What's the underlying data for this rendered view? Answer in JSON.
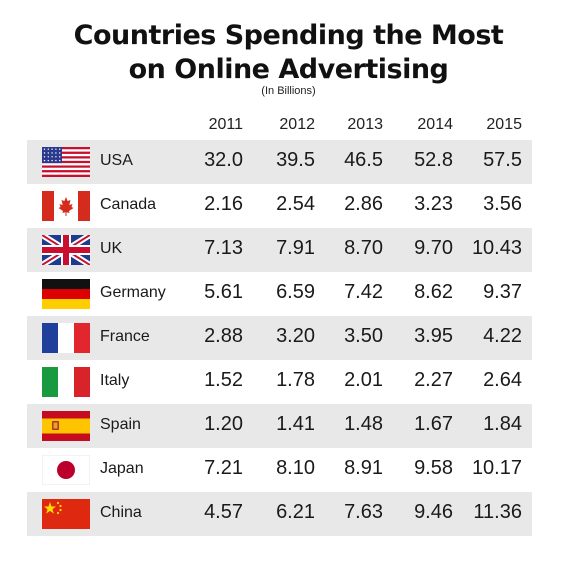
{
  "title_line1": "Countries Spending the Most",
  "title_line2": "on Online Advertising",
  "subtitle": "(In Billions)",
  "chart_data": {
    "type": "table",
    "title": "Countries Spending the Most on Online Advertising",
    "subtitle": "(In Billions)",
    "columns": [
      "2011",
      "2012",
      "2013",
      "2014",
      "2015"
    ],
    "rows": [
      {
        "country": "USA",
        "flag": "usa-flag",
        "values": [
          "32.0",
          "39.5",
          "46.5",
          "52.8",
          "57.5"
        ]
      },
      {
        "country": "Canada",
        "flag": "canada-flag",
        "values": [
          "2.16",
          "2.54",
          "2.86",
          "3.23",
          "3.56"
        ]
      },
      {
        "country": "UK",
        "flag": "uk-flag",
        "values": [
          "7.13",
          "7.91",
          "8.70",
          "9.70",
          "10.43"
        ]
      },
      {
        "country": "Germany",
        "flag": "germany-flag",
        "values": [
          "5.61",
          "6.59",
          "7.42",
          "8.62",
          "9.37"
        ]
      },
      {
        "country": "France",
        "flag": "france-flag",
        "values": [
          "2.88",
          "3.20",
          "3.50",
          "3.95",
          "4.22"
        ]
      },
      {
        "country": "Italy",
        "flag": "italy-flag",
        "values": [
          "1.52",
          "1.78",
          "2.01",
          "2.27",
          "2.64"
        ]
      },
      {
        "country": "Spain",
        "flag": "spain-flag",
        "values": [
          "1.20",
          "1.41",
          "1.48",
          "1.67",
          "1.84"
        ]
      },
      {
        "country": "Japan",
        "flag": "japan-flag",
        "values": [
          "7.21",
          "8.10",
          "8.91",
          "9.58",
          "10.17"
        ]
      },
      {
        "country": "China",
        "flag": "china-flag",
        "values": [
          "4.57",
          "6.21",
          "7.63",
          "9.46",
          "11.36"
        ]
      }
    ]
  },
  "colors": {
    "row_shade": "#e8e8e8",
    "text": "#1a1a1a"
  }
}
